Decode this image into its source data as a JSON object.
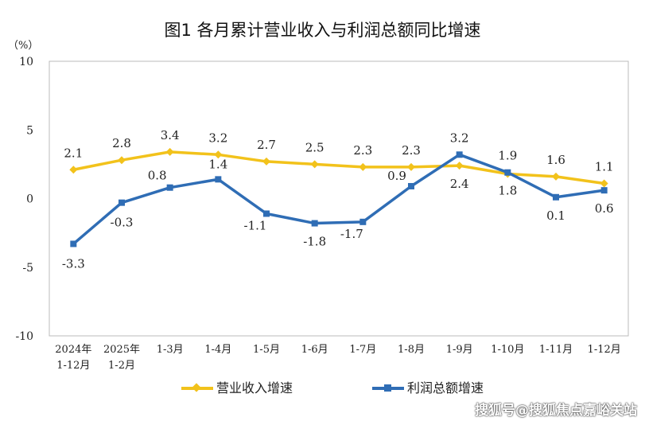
{
  "chart_data": {
    "type": "line",
    "title": "图1  各月累计营业收入与利润总额同比增速",
    "ylabel": "（%）",
    "ylim": [
      -10,
      10
    ],
    "yticks": [
      10,
      5,
      0,
      -5,
      -10
    ],
    "grid": false,
    "legend_position": "bottom",
    "categories": [
      [
        "2024年",
        "1-12月"
      ],
      [
        "2025年",
        "1-2月"
      ],
      [
        "1-3月"
      ],
      [
        "1-4月"
      ],
      [
        "1-5月"
      ],
      [
        "1-6月"
      ],
      [
        "1-7月"
      ],
      [
        "1-8月"
      ],
      [
        "1-9月"
      ],
      [
        "1-10月"
      ],
      [
        "1-11月"
      ],
      [
        "1-12月"
      ]
    ],
    "series": [
      {
        "name": "营业收入增速",
        "color": "#F2C21B",
        "marker": "diamond",
        "values": [
          2.1,
          2.8,
          3.4,
          3.2,
          2.7,
          2.5,
          2.3,
          2.3,
          2.4,
          1.8,
          1.6,
          1.1
        ]
      },
      {
        "name": "利润总额增速",
        "color": "#2F6DB5",
        "marker": "square",
        "values": [
          -3.3,
          -0.3,
          0.8,
          1.4,
          -1.1,
          -1.8,
          -1.7,
          0.9,
          3.2,
          1.9,
          0.1,
          0.6
        ]
      }
    ]
  },
  "watermark": "搜狐号@搜狐焦点嘉峪关站"
}
